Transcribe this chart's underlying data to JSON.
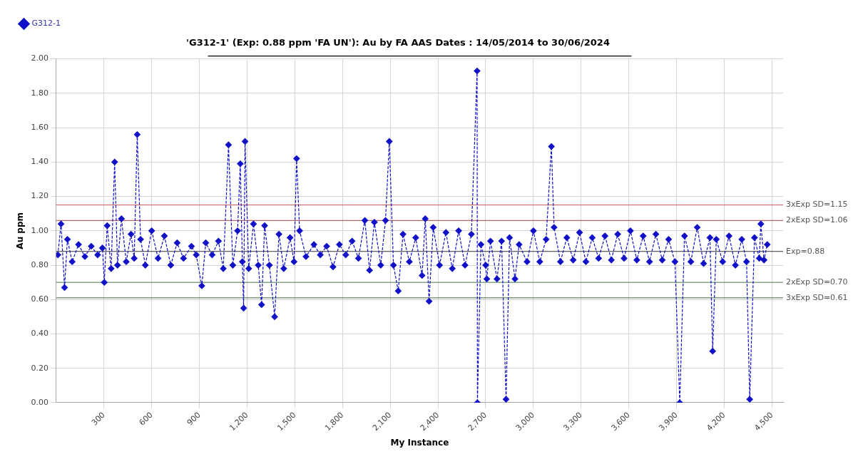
{
  "chart_data": {
    "type": "line",
    "title": "'G312-1' (Exp: 0.88 ppm 'FA UN'): Au by FA AAS Dates : 14/05/2014 to 30/06/2024",
    "xlabel": "My Instance",
    "ylabel": "Au ppm",
    "xlim": [
      0,
      4570
    ],
    "xticks": [
      300,
      600,
      900,
      {
        "value": 1200,
        "label": "1,200"
      },
      {
        "value": 1500,
        "label": "1,500"
      },
      {
        "value": 1800,
        "label": "1,800"
      },
      {
        "value": 2100,
        "label": "2,100"
      },
      {
        "value": 2400,
        "label": "2,400"
      },
      {
        "value": 2700,
        "label": "2,700"
      },
      {
        "value": 3000,
        "label": "3,000"
      },
      {
        "value": 3300,
        "label": "3,300"
      },
      {
        "value": 3600,
        "label": "3,600"
      },
      {
        "value": 3900,
        "label": "3,900"
      },
      {
        "value": 4200,
        "label": "4,200"
      },
      {
        "value": 4500,
        "label": "4,500"
      }
    ],
    "ylim": [
      0,
      2
    ],
    "yticks": [
      {
        "value": 0,
        "label": "0.00"
      },
      {
        "value": 0.2,
        "label": "0.20"
      },
      {
        "value": 0.4,
        "label": "0.40"
      },
      {
        "value": 0.6,
        "label": "0.60"
      },
      {
        "value": 0.8,
        "label": "0.80"
      },
      {
        "value": 1,
        "label": "1.00"
      },
      {
        "value": 1.2,
        "label": "1.20"
      },
      {
        "value": 1.4,
        "label": "1.40"
      },
      {
        "value": 1.6,
        "label": "1.60"
      },
      {
        "value": 1.8,
        "label": "1.80"
      },
      {
        "value": 2,
        "label": "2.00"
      }
    ],
    "grid": true,
    "legend": "top left",
    "marker": "diamond",
    "line_style": "dashed",
    "ref_lines": [
      {
        "axis": "y",
        "value": 1.15,
        "label": "3xExp SD=1.15",
        "color": "#cc5555"
      },
      {
        "axis": "y",
        "value": 1.06,
        "label": "2xExp SD=1.06",
        "color": "#aa4444"
      },
      {
        "axis": "y",
        "value": 0.88,
        "label": "Exp=0.88",
        "color": "#333333"
      },
      {
        "axis": "y",
        "value": 0.7,
        "label": "2xExp SD=0.70",
        "color": "#4a7a4a"
      },
      {
        "axis": "y",
        "value": 0.61,
        "label": "3xExp SD=0.61",
        "color": "#3a6a3a"
      }
    ],
    "series": [
      {
        "name": "G312-1",
        "color": "#1010c8",
        "x": [
          10,
          30,
          52,
          70,
          100,
          140,
          180,
          220,
          260,
          290,
          302,
          320,
          345,
          367,
          385,
          410,
          440,
          470,
          490,
          509,
          530,
          560,
          600,
          640,
          680,
          720,
          760,
          800,
          850,
          880,
          915,
          940,
          980,
          1020,
          1050,
          1083,
          1110,
          1140,
          1157,
          1170,
          1178,
          1187,
          1210,
          1240,
          1270,
          1291,
          1310,
          1340,
          1373,
          1400,
          1430,
          1470,
          1495,
          1511,
          1530,
          1570,
          1620,
          1660,
          1700,
          1740,
          1780,
          1820,
          1860,
          1900,
          1940,
          1970,
          2000,
          2040,
          2070,
          2094,
          2120,
          2150,
          2180,
          2220,
          2260,
          2300,
          2320,
          2344,
          2370,
          2410,
          2450,
          2490,
          2530,
          2570,
          2610,
          2646,
          2648,
          2670,
          2700,
          2707,
          2730,
          2771,
          2800,
          2828,
          2850,
          2884,
          2910,
          2960,
          3000,
          3040,
          3080,
          3113,
          3130,
          3170,
          3210,
          3250,
          3290,
          3330,
          3370,
          3410,
          3450,
          3490,
          3530,
          3570,
          3610,
          3650,
          3690,
          3730,
          3770,
          3810,
          3850,
          3890,
          3920,
          3950,
          3990,
          4030,
          4070,
          4110,
          4127,
          4150,
          4190,
          4230,
          4270,
          4310,
          4340,
          4360,
          4390,
          4420,
          4430,
          4450,
          4470
        ],
        "values": [
          0.86,
          1.04,
          0.67,
          0.95,
          0.82,
          0.92,
          0.85,
          0.91,
          0.86,
          0.9,
          0.7,
          1.03,
          0.78,
          1.4,
          0.8,
          1.07,
          0.82,
          0.98,
          0.84,
          1.56,
          0.95,
          0.8,
          1.0,
          0.84,
          0.97,
          0.8,
          0.93,
          0.84,
          0.91,
          0.86,
          0.68,
          0.93,
          0.86,
          0.94,
          0.78,
          1.5,
          0.8,
          1.0,
          1.39,
          0.82,
          0.55,
          1.52,
          0.78,
          1.04,
          0.8,
          0.57,
          1.03,
          0.8,
          0.5,
          0.98,
          0.78,
          0.96,
          0.82,
          1.42,
          1.0,
          0.85,
          0.92,
          0.86,
          0.91,
          0.79,
          0.92,
          0.86,
          0.94,
          0.84,
          1.06,
          0.77,
          1.05,
          0.8,
          1.06,
          1.52,
          0.8,
          0.65,
          0.98,
          0.82,
          0.96,
          0.74,
          1.07,
          0.59,
          1.02,
          0.8,
          0.99,
          0.78,
          1.0,
          0.8,
          0.98,
          1.93,
          0.0,
          0.92,
          0.8,
          0.72,
          0.94,
          0.72,
          0.94,
          0.02,
          0.96,
          0.72,
          0.92,
          0.82,
          1.0,
          0.82,
          0.95,
          1.49,
          1.02,
          0.82,
          0.96,
          0.83,
          0.99,
          0.82,
          0.96,
          0.84,
          0.97,
          0.83,
          0.98,
          0.84,
          1.0,
          0.83,
          0.97,
          0.82,
          0.98,
          0.83,
          0.95,
          0.82,
          0.0,
          0.97,
          0.82,
          1.02,
          0.81,
          0.96,
          0.3,
          0.95,
          0.82,
          0.97,
          0.8,
          0.95,
          0.82,
          0.02,
          0.96,
          0.84,
          1.04,
          0.83,
          0.92
        ]
      }
    ]
  }
}
